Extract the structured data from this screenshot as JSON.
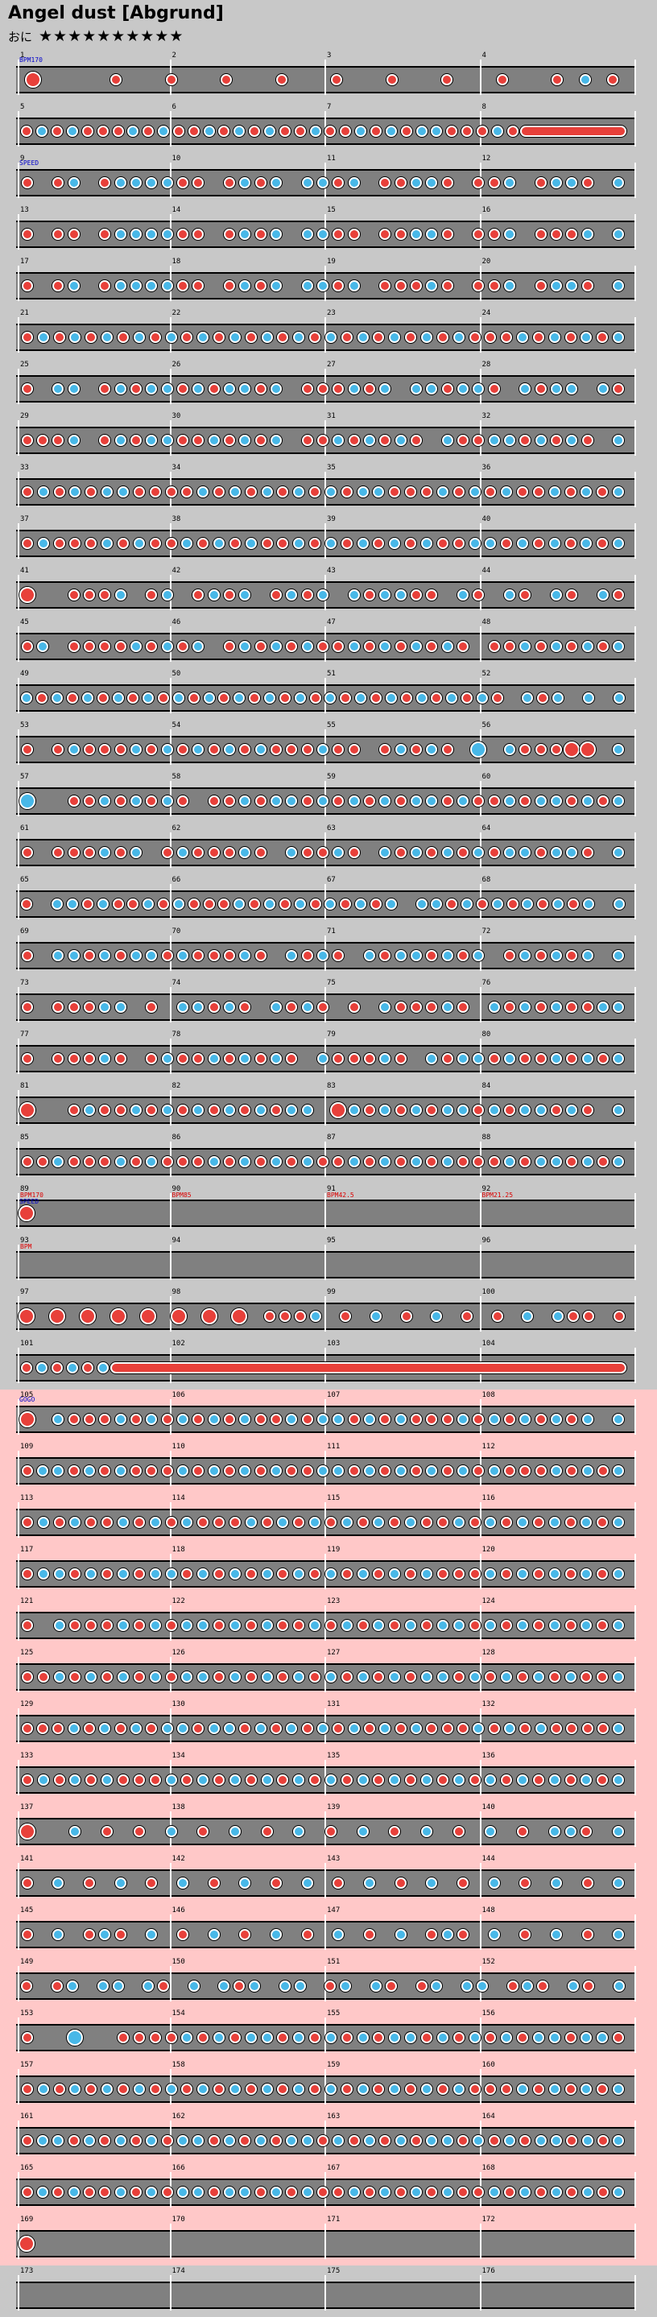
{
  "song": {
    "title": "Angel dust [Abgrund]",
    "difficulty_label": "おに",
    "stars": "★★★★★★★★★★"
  },
  "colors": {
    "don": "#e8403a",
    "ka": "#48b8e8",
    "lane": "#808080",
    "gogo": "#ffc8c8"
  },
  "rows": [
    {
      "m": 1,
      "gogo": false,
      "event": "BPM170",
      "notes": "D..d.d.d.d.d.d.d.d.dkd"
    },
    {
      "m": 5,
      "gogo": false,
      "notes": "dkdkdddkdkddkdkdkddkddkdkdkkdddkdrrrrrrr"
    },
    {
      "m": 9,
      "gogo": false,
      "event": "SPEED",
      "notes": "d.dk.dkkkkdd.dkdk.kkdk.ddkkd.ddk.dkkd.k"
    },
    {
      "m": 13,
      "gogo": false,
      "notes": "d.dd.dkkkkdd.dkdk.kkdd.ddkkd.ddk.dddk.k"
    },
    {
      "m": 17,
      "gogo": false,
      "notes": "d.dk.dkkkkdd.dkdk.kkdk.dddkd.ddk.dkkd.k"
    },
    {
      "m": 21,
      "gogo": false,
      "notes": "dkdkdkdkdkdkdkdkdkdkdkdkdkdkdddkdkdkdk"
    },
    {
      "m": 25,
      "gogo": false,
      "notes": "d.kk.dkdkkdkdkkdk.dddkdk.kkdkkd.kdkk.kd"
    },
    {
      "m": 29,
      "gogo": false,
      "notes": "dddk.dkdkkddkdkdk.ddkdkdkd.kddkkdkdkd.k"
    },
    {
      "m": 33,
      "gogo": false,
      "notes": "dkdkdkkddddkdkdkdkdkdkkdddkdkdkddkdkdk"
    },
    {
      "m": 37,
      "gogo": false,
      "notes": "dkdddkdkddkdkdkddkdkdkdkdkddkkdkdkdkdk"
    },
    {
      "m": 41,
      "gogo": false,
      "notes": "D..dddk.dk.dkdk.dkdk.kdkkdd.kd.kd.kd.kd"
    },
    {
      "m": 45,
      "gogo": false,
      "notes": "dk.ddddkdkdk.dkdkdkddkdkdkdkd.ddkdkdkdk"
    },
    {
      "m": 49,
      "gogo": false,
      "notes": "kdkdkdkdkdkdkdkdkdkdkdkdkdkdkdkd.kdk.k.k"
    },
    {
      "m": 53,
      "gogo": false,
      "notes": "d.dkdddkdkdkdkdkdddkdd.dkdkd.K.kdddDD.k"
    },
    {
      "m": 57,
      "gogo": false,
      "notes": "K..ddkdkdkd.ddkdkkdkdkdkdkkdkddkdkkdkdk"
    },
    {
      "m": 61,
      "gogo": false,
      "notes": "d.dddkdk.dkdddkd.kddkd.kdkdkdkdkkdkkd.k"
    },
    {
      "m": 65,
      "gogo": false,
      "notes": "d.kkdkddkdkdddkdkdkdkdkdk.kkdkdkdkdkdk.k"
    },
    {
      "m": 69,
      "gogo": false,
      "notes": "d.kkdkdkkdkdddkd.kdkd.kdkkdkdk.dkdkdk.k"
    },
    {
      "m": 73,
      "gogo": false,
      "notes": "d.dddkk.d.kkdkd.kdkd.d.kdddkd.kdkdkddkk"
    },
    {
      "m": 77,
      "gogo": false,
      "notes": "d.dddkd.dkddkdkdkd.kdddkd.kdkkdkddkdkdk"
    },
    {
      "m": 81,
      "gogo": false,
      "notes": "D..dkddkdkdkdkdkdkk.Dkdkdkdkkdkdkkdkd.k"
    },
    {
      "m": 85,
      "gogo": false,
      "notes": "ddkdddkdkdddkdkdkdkddkdkdkdkdddkdkkdkdk"
    },
    {
      "m": 89,
      "gogo": false,
      "event": "SPEED",
      "bpm": [
        "BPM170",
        "BPM85",
        "BPM42.5",
        "BPM21.25"
      ],
      "notes": "D......................................."
    },
    {
      "m": 93,
      "gogo": false,
      "event": "",
      "bpm": [
        "BPM"
      ],
      "notes": "........................................"
    },
    {
      "m": 97,
      "gogo": false,
      "notes": "D.D.D.D.D.D.D.D.dddk.d.k.d.k.d.d.k.kdd.d"
    },
    {
      "m": 101,
      "gogo": false,
      "notes": "dkdkdkrrrrrrrrrrrrrrrrrrrrrrrrrrrrrrrrrr"
    },
    {
      "m": 105,
      "gogo": true,
      "event": "GOGO",
      "notes": "D.kdddkdkdkdkdkddkdkkdkdkdddkdkdkdkdk.k"
    },
    {
      "m": 109,
      "gogo": true,
      "notes": "dkkdkdkdddkdkdkdkddkkdkdkdkdkdkdddkdkdk"
    },
    {
      "m": 113,
      "gogo": true,
      "notes": "dkdkddkdkdkdddkdkdkdkdkdkddkdkdkdkdkdk"
    },
    {
      "m": 117,
      "gogo": true,
      "notes": "dkkdkdkdkkdkdkdkdkdkdkdkdkdddkdkdkdkdk"
    },
    {
      "m": 121,
      "gogo": true,
      "notes": "d.kdddkdkdkkdkdkddkdkdkdkdkkdkdkdkdkdk"
    },
    {
      "m": 125,
      "gogo": true,
      "notes": "ddkdkdkdkdkkdkdkdkdkdkdkdkkdkdkdkdkddk"
    },
    {
      "m": 129,
      "gogo": true,
      "notes": "dddkdkdkdkkdkkdkdkdkdkdkdkdddkdkdkddddk"
    },
    {
      "m": 133,
      "gogo": true,
      "notes": "dkdkdkdddkdkdkdkdkdkdkdkdkdkdkdkdkdkdk"
    },
    {
      "m": 137,
      "gogo": true,
      "notes": "D..k.d.d.k.d.k.d.k.d.k.d.k.d.k.d.kkd.k"
    },
    {
      "m": 141,
      "gogo": true,
      "notes": "d.k.d.k.d.k.d.k.d.k.d.k.d.k.d.k.d.k.d.k"
    },
    {
      "m": 145,
      "gogo": true,
      "notes": "d.k.dkd.k.d.k.d.k.d.k.d.k.dkd.k.d.k.d.k"
    },
    {
      "m": 149,
      "gogo": true,
      "notes": "d.dk.kk.kd.k.kdk.kk.dk.kd.dk.kk.dkd.kd.k"
    },
    {
      "m": 153,
      "gogo": true,
      "notes": "d..K..ddddkdkdkkdkdkdkdkkdkdkdkdkkdkkd"
    },
    {
      "m": 157,
      "gogo": true,
      "notes": "dkdkdkdkdkdkdkdkdkdkdkdkdkdkdddkdkdkdk"
    },
    {
      "m": 161,
      "gogo": true,
      "notes": "dkkdkdkdkdkkdkdkdkkdkdkdkdkkdkdkdkkdkdk"
    },
    {
      "m": 165,
      "gogo": true,
      "notes": "dkdkddkdkdkkdkkdkdkddkdkdkdkddkdkdkdkdk"
    },
    {
      "m": 169,
      "gogo": true,
      "notes": "D......................................."
    },
    {
      "m": 173,
      "gogo": false,
      "notes": "........................................"
    }
  ]
}
